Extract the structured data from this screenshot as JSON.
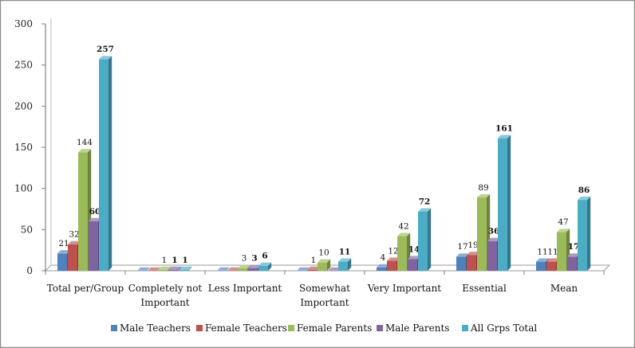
{
  "chart_data": {
    "type": "bar",
    "title": "",
    "xlabel": "",
    "ylabel": "",
    "ylim": [
      0,
      300
    ],
    "yticks": [
      0,
      50,
      100,
      150,
      200,
      250,
      300
    ],
    "grid": false,
    "legend_position": "bottom",
    "categories": [
      [
        "Total per/Group"
      ],
      [
        "Completely not",
        "Important"
      ],
      [
        "Less Important"
      ],
      [
        "Somewhat",
        "Important"
      ],
      [
        "Very Important"
      ],
      [
        "Essential"
      ],
      [
        "Mean"
      ]
    ],
    "series": [
      {
        "name": "Male Teachers",
        "color": "#4f81bd",
        "values": [
          21,
          0,
          0,
          0,
          4,
          17,
          11
        ],
        "labels": [
          "21",
          "",
          "",
          "",
          "4",
          "17",
          "11"
        ]
      },
      {
        "name": "Female Teachers",
        "color": "#c0504d",
        "values": [
          32,
          0,
          0,
          1,
          12,
          19,
          11
        ],
        "labels": [
          "32",
          "",
          "",
          "1",
          "12",
          "19",
          "11"
        ]
      },
      {
        "name": "Female Parents",
        "color": "#9bbb59",
        "values": [
          144,
          1,
          3,
          10,
          42,
          89,
          47
        ],
        "labels": [
          "144",
          "1",
          "3",
          "10",
          "42",
          "89",
          "47"
        ]
      },
      {
        "name": "Male Parents",
        "color": "#8064a2",
        "values": [
          60,
          1,
          3,
          0,
          14,
          36,
          17
        ],
        "labels": [
          "60",
          "1",
          "3",
          "",
          "14",
          "36",
          "17"
        ]
      },
      {
        "name": "All Grps Total",
        "color": "#4bacc6",
        "values": [
          257,
          1,
          6,
          11,
          72,
          161,
          86
        ],
        "labels": [
          "257",
          "1",
          "6",
          "11",
          "72",
          "161",
          "86"
        ]
      }
    ]
  }
}
